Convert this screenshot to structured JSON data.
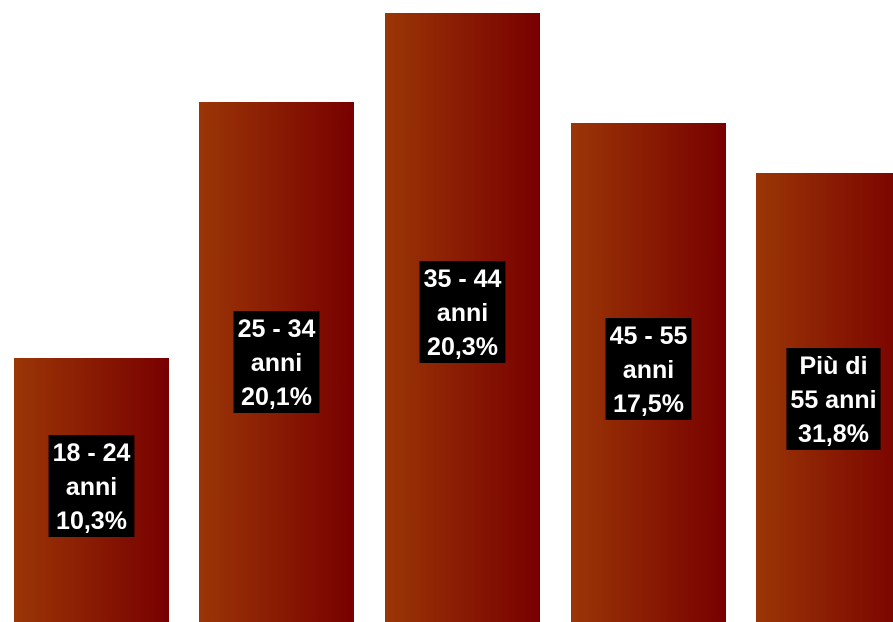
{
  "chart_data": {
    "type": "bar",
    "categories": [
      "18 - 24 anni",
      "25 - 34 anni",
      "35 - 44 anni",
      "45 - 55 anni",
      "Più di 55 anni"
    ],
    "values": [
      10.3,
      20.1,
      20.3,
      17.5,
      31.8
    ],
    "value_labels": [
      "10,3%",
      "20,1%",
      "20,3%",
      "17,5%",
      "31,8%"
    ],
    "bar_labels": [
      [
        "18 - 24",
        "anni",
        "10,3%"
      ],
      [
        "25 - 34",
        "anni",
        "20,1%"
      ],
      [
        "35 - 44",
        "anni",
        "20,3%"
      ],
      [
        "45 - 55",
        "anni",
        "17,5%"
      ],
      [
        "Più di",
        "55 anni",
        "31,8%"
      ]
    ],
    "title": "",
    "xlabel": "",
    "ylabel": "",
    "grid": false,
    "legend": "none",
    "colors": {
      "bar_light": "#9a3606",
      "bar_dark": "#780000",
      "label_bg": "#000000",
      "label_text": "#ffffff"
    }
  }
}
